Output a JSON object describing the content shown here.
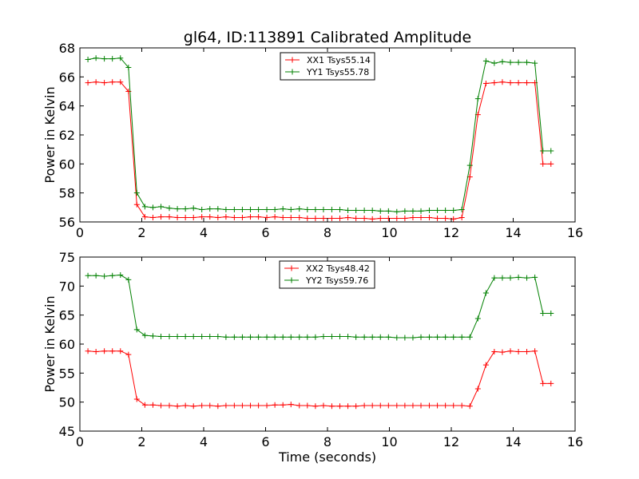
{
  "chart_data": [
    {
      "type": "line",
      "title": "gl64, ID:113891 Calibrated Amplitude",
      "xlabel": "",
      "ylabel": "Power in Kelvin",
      "xlim": [
        0,
        16
      ],
      "ylim": [
        56,
        68
      ],
      "xticks": [
        0,
        2,
        4,
        6,
        8,
        10,
        12,
        14,
        16
      ],
      "yticks": [
        56,
        58,
        60,
        62,
        64,
        66,
        68
      ],
      "grid": false,
      "legend": "top-center",
      "x": [
        0.26,
        0.52,
        0.79,
        1.05,
        1.31,
        1.57,
        1.84,
        2.1,
        2.36,
        2.62,
        2.89,
        3.15,
        3.41,
        3.67,
        3.94,
        4.2,
        4.46,
        4.72,
        4.99,
        5.25,
        5.51,
        5.77,
        6.04,
        6.3,
        6.56,
        6.82,
        7.09,
        7.35,
        7.61,
        7.87,
        8.14,
        8.4,
        8.66,
        8.92,
        9.19,
        9.45,
        9.71,
        9.97,
        10.24,
        10.5,
        10.76,
        11.02,
        11.29,
        11.55,
        11.81,
        12.07,
        12.34,
        12.6,
        12.86,
        13.12,
        13.39,
        13.65,
        13.91,
        14.17,
        14.44,
        14.7,
        14.96,
        15.22
      ],
      "series": [
        {
          "name": "XX1 Tsys55.14",
          "color": "#ff0000",
          "values": [
            65.6,
            65.65,
            65.6,
            65.65,
            65.65,
            65.0,
            57.2,
            56.35,
            56.3,
            56.35,
            56.35,
            56.3,
            56.3,
            56.3,
            56.35,
            56.35,
            56.3,
            56.35,
            56.3,
            56.3,
            56.35,
            56.35,
            56.3,
            56.35,
            56.3,
            56.3,
            56.3,
            56.25,
            56.25,
            56.25,
            56.25,
            56.25,
            56.3,
            56.25,
            56.25,
            56.2,
            56.25,
            56.25,
            56.25,
            56.25,
            56.3,
            56.3,
            56.3,
            56.25,
            56.25,
            56.2,
            56.3,
            59.1,
            63.4,
            65.55,
            65.6,
            65.65,
            65.6,
            65.6,
            65.6,
            65.6,
            60.0,
            60.0
          ]
        },
        {
          "name": "YY1 Tsys55.78",
          "color": "#008000",
          "values": [
            67.2,
            67.3,
            67.25,
            67.25,
            67.3,
            66.65,
            58.0,
            57.05,
            57.0,
            57.05,
            56.95,
            56.9,
            56.9,
            56.95,
            56.85,
            56.9,
            56.9,
            56.85,
            56.85,
            56.85,
            56.85,
            56.85,
            56.85,
            56.85,
            56.9,
            56.85,
            56.9,
            56.85,
            56.85,
            56.85,
            56.85,
            56.85,
            56.8,
            56.8,
            56.8,
            56.8,
            56.75,
            56.75,
            56.7,
            56.75,
            56.75,
            56.75,
            56.8,
            56.8,
            56.8,
            56.8,
            56.85,
            59.9,
            64.5,
            67.1,
            66.95,
            67.05,
            67.0,
            67.0,
            67.0,
            66.95,
            60.9,
            60.9
          ]
        }
      ]
    },
    {
      "type": "line",
      "title": "",
      "xlabel": "Time (seconds)",
      "ylabel": "Power in Kelvin",
      "xlim": [
        0,
        16
      ],
      "ylim": [
        45,
        75
      ],
      "xticks": [
        0,
        2,
        4,
        6,
        8,
        10,
        12,
        14,
        16
      ],
      "yticks": [
        45,
        50,
        55,
        60,
        65,
        70,
        75
      ],
      "grid": false,
      "legend": "top-center",
      "x": [
        0.26,
        0.52,
        0.79,
        1.05,
        1.31,
        1.57,
        1.84,
        2.1,
        2.36,
        2.62,
        2.89,
        3.15,
        3.41,
        3.67,
        3.94,
        4.2,
        4.46,
        4.72,
        4.99,
        5.25,
        5.51,
        5.77,
        6.04,
        6.3,
        6.56,
        6.82,
        7.09,
        7.35,
        7.61,
        7.87,
        8.14,
        8.4,
        8.66,
        8.92,
        9.19,
        9.45,
        9.71,
        9.97,
        10.24,
        10.5,
        10.76,
        11.02,
        11.29,
        11.55,
        11.81,
        12.07,
        12.34,
        12.6,
        12.86,
        13.12,
        13.39,
        13.65,
        13.91,
        14.17,
        14.44,
        14.7,
        14.96,
        15.22
      ],
      "series": [
        {
          "name": "XX2 Tsys48.42",
          "color": "#ff0000",
          "values": [
            58.8,
            58.7,
            58.8,
            58.8,
            58.8,
            58.2,
            50.5,
            49.5,
            49.5,
            49.4,
            49.4,
            49.3,
            49.4,
            49.3,
            49.4,
            49.4,
            49.3,
            49.4,
            49.4,
            49.4,
            49.4,
            49.4,
            49.4,
            49.5,
            49.5,
            49.6,
            49.4,
            49.4,
            49.3,
            49.4,
            49.3,
            49.3,
            49.3,
            49.3,
            49.4,
            49.4,
            49.4,
            49.4,
            49.4,
            49.4,
            49.4,
            49.4,
            49.4,
            49.4,
            49.4,
            49.4,
            49.4,
            49.3,
            52.3,
            56.4,
            58.7,
            58.6,
            58.8,
            58.7,
            58.7,
            58.8,
            53.2,
            53.2
          ]
        },
        {
          "name": "YY2 Tsys59.76",
          "color": "#008000",
          "values": [
            71.8,
            71.8,
            71.7,
            71.8,
            71.9,
            71.1,
            62.5,
            61.5,
            61.4,
            61.3,
            61.3,
            61.3,
            61.3,
            61.3,
            61.3,
            61.3,
            61.3,
            61.2,
            61.2,
            61.2,
            61.2,
            61.2,
            61.2,
            61.2,
            61.2,
            61.2,
            61.2,
            61.2,
            61.2,
            61.3,
            61.3,
            61.3,
            61.3,
            61.2,
            61.2,
            61.2,
            61.2,
            61.2,
            61.1,
            61.1,
            61.1,
            61.2,
            61.2,
            61.2,
            61.2,
            61.2,
            61.2,
            61.2,
            64.4,
            68.8,
            71.4,
            71.4,
            71.4,
            71.5,
            71.4,
            71.5,
            65.3,
            65.3
          ]
        }
      ]
    }
  ]
}
